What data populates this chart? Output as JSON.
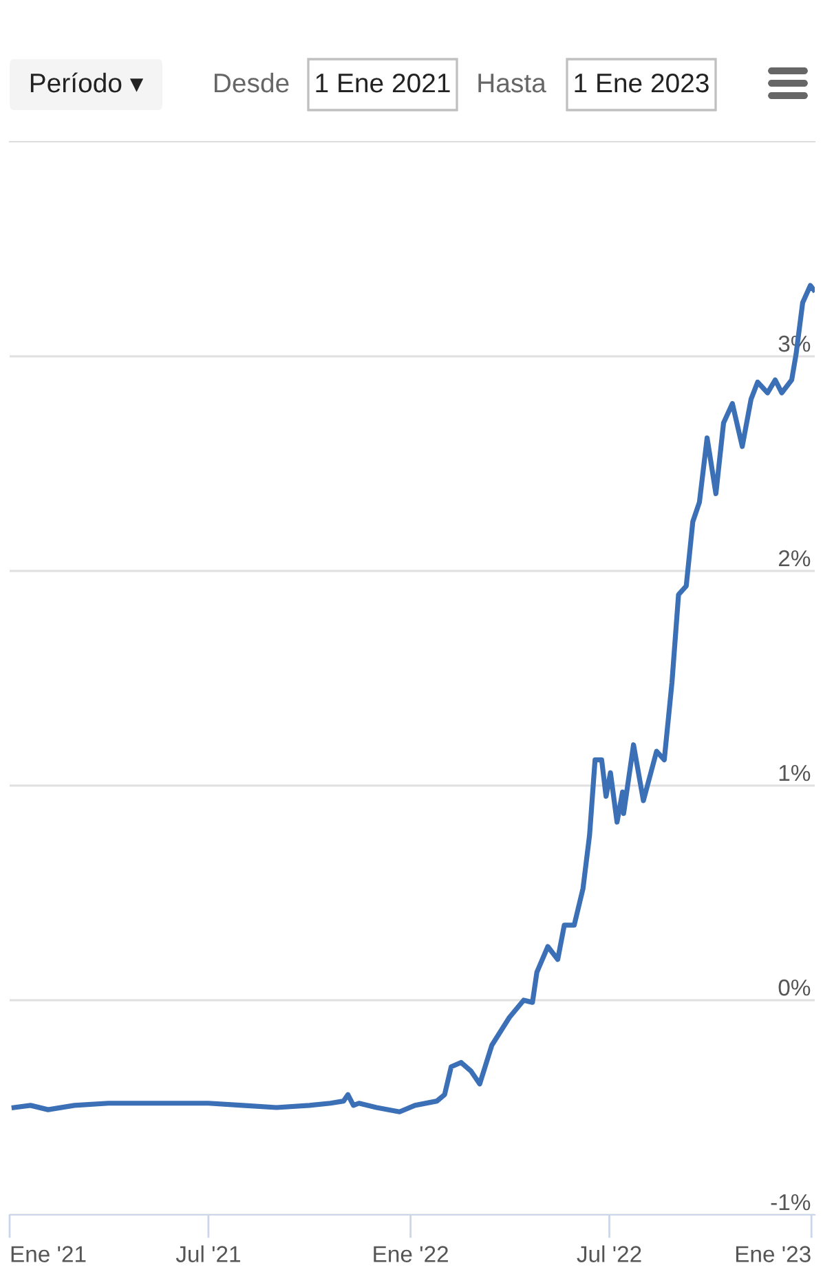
{
  "chart_data": {
    "type": "line",
    "annotations": [
      "Período ▾",
      "Desde",
      "1 Ene 2021",
      "Hasta",
      "1 Ene 2023"
    ],
    "x": [
      "2021-01-05",
      "2021-01-20",
      "2021-02-05",
      "2021-03-01",
      "2021-04-01",
      "2021-05-01",
      "2021-06-01",
      "2021-07-01",
      "2021-08-01",
      "2021-09-01",
      "2021-10-01",
      "2021-10-20",
      "2021-11-01",
      "2021-11-05",
      "2021-11-10",
      "2021-11-15",
      "2021-12-01",
      "2021-12-22",
      "2022-01-05",
      "2022-01-25",
      "2022-02-01",
      "2022-02-07",
      "2022-02-16",
      "2022-02-25",
      "2022-03-05",
      "2022-03-16",
      "2022-04-01",
      "2022-04-14",
      "2022-04-22",
      "2022-04-26",
      "2022-05-06",
      "2022-05-15",
      "2022-05-21",
      "2022-05-30",
      "2022-06-07",
      "2022-06-13",
      "2022-06-18",
      "2022-06-24",
      "2022-06-28",
      "2022-07-02",
      "2022-07-08",
      "2022-07-13",
      "2022-07-14",
      "2022-07-23",
      "2022-08-01",
      "2022-08-13",
      "2022-08-20",
      "2022-08-27",
      "2022-09-02",
      "2022-09-09",
      "2022-09-15",
      "2022-09-21",
      "2022-09-28",
      "2022-10-06",
      "2022-10-13",
      "2022-10-21",
      "2022-10-30",
      "2022-11-07",
      "2022-11-13",
      "2022-11-22",
      "2022-11-29",
      "2022-12-05",
      "2022-12-14",
      "2022-12-18",
      "2022-12-24",
      "2022-12-31",
      "2023-01-03"
    ],
    "series": [
      {
        "color": "#3b6fb6",
        "values": [
          -0.5,
          -0.49,
          -0.51,
          -0.49,
          -0.48,
          -0.48,
          -0.48,
          -0.48,
          -0.49,
          -0.5,
          -0.49,
          -0.48,
          -0.47,
          -0.44,
          -0.49,
          -0.48,
          -0.5,
          -0.52,
          -0.49,
          -0.47,
          -0.44,
          -0.31,
          -0.29,
          -0.33,
          -0.39,
          -0.21,
          -0.08,
          0.0,
          -0.01,
          0.13,
          0.25,
          0.19,
          0.35,
          0.35,
          0.52,
          0.77,
          1.12,
          1.12,
          0.95,
          1.06,
          0.83,
          0.97,
          0.87,
          1.19,
          0.93,
          1.16,
          1.12,
          1.48,
          1.89,
          1.93,
          2.23,
          2.32,
          2.62,
          2.36,
          2.69,
          2.78,
          2.58,
          2.8,
          2.88,
          2.83,
          2.89,
          2.83,
          2.89,
          3.01,
          3.25,
          3.33,
          3.31
        ]
      }
    ],
    "xlim": [
      "2021-01-01",
      "2023-01-04"
    ],
    "xticks": [
      {
        "value": "2021-01-01",
        "label": "Ene '21"
      },
      {
        "value": "2021-07-01",
        "label": "Jul '21"
      },
      {
        "value": "2022-01-01",
        "label": "Ene '22"
      },
      {
        "value": "2022-07-01",
        "label": "Jul '22"
      },
      {
        "value": "2023-01-01",
        "label": "Ene '23"
      }
    ],
    "ylim": [
      -1,
      4
    ],
    "yticks": [
      {
        "value": -1,
        "label": "-1%"
      },
      {
        "value": 0,
        "label": "0%"
      },
      {
        "value": 1,
        "label": "1%"
      },
      {
        "value": 2,
        "label": "2%"
      },
      {
        "value": 3,
        "label": "3%"
      }
    ],
    "grid": "y",
    "legend": false,
    "marker": "none",
    "line_style": "solid"
  }
}
